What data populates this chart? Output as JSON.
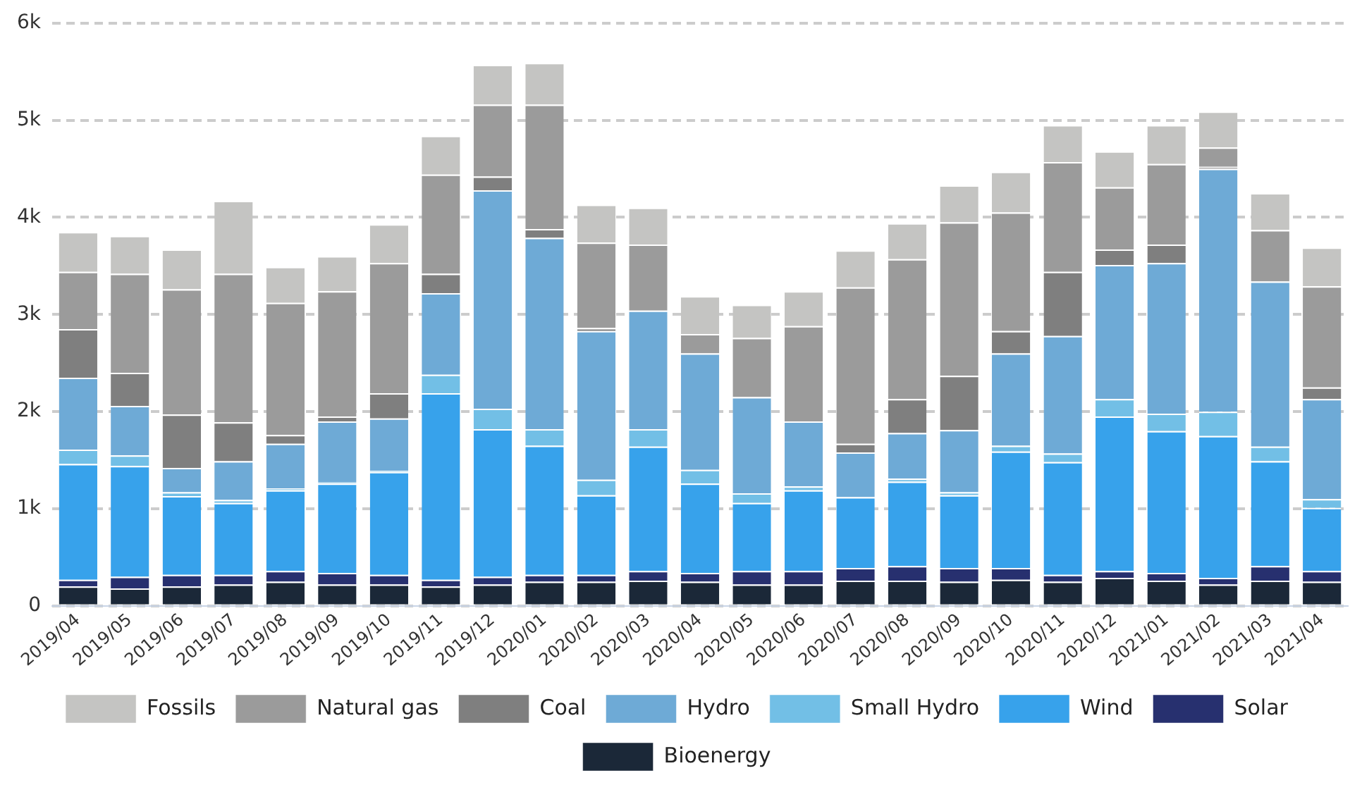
{
  "chart_data": {
    "type": "bar",
    "stacked": true,
    "categories": [
      "2019/04",
      "2019/05",
      "2019/06",
      "2019/07",
      "2019/08",
      "2019/09",
      "2019/10",
      "2019/11",
      "2019/12",
      "2020/01",
      "2020/02",
      "2020/03",
      "2020/04",
      "2020/05",
      "2020/06",
      "2020/07",
      "2020/08",
      "2020/09",
      "2020/10",
      "2020/11",
      "2020/12",
      "2021/01",
      "2021/02",
      "2021/03",
      "2021/04"
    ],
    "series": [
      {
        "name": "Bioenergy",
        "color": "#1b2838",
        "values": [
          200,
          180,
          200,
          220,
          250,
          220,
          220,
          200,
          220,
          250,
          250,
          260,
          250,
          220,
          220,
          260,
          260,
          250,
          270,
          250,
          290,
          260,
          220,
          260,
          250
        ]
      },
      {
        "name": "Solar",
        "color": "#27306f",
        "values": [
          70,
          120,
          120,
          100,
          110,
          120,
          100,
          70,
          80,
          70,
          70,
          100,
          90,
          140,
          140,
          130,
          150,
          140,
          120,
          70,
          70,
          80,
          70,
          150,
          110
        ]
      },
      {
        "name": "Wind",
        "color": "#37a2eb",
        "values": [
          1190,
          1140,
          810,
          740,
          830,
          920,
          1060,
          1920,
          1520,
          1330,
          820,
          1280,
          920,
          700,
          830,
          730,
          870,
          750,
          1200,
          1160,
          1590,
          1460,
          1460,
          1080,
          650
        ]
      },
      {
        "name": "Small Hydro",
        "color": "#72bfe6",
        "values": [
          150,
          110,
          40,
          30,
          20,
          10,
          10,
          190,
          210,
          170,
          160,
          180,
          140,
          100,
          40,
          null,
          30,
          30,
          60,
          90,
          180,
          180,
          250,
          150,
          90
        ]
      },
      {
        "name": "Hydro",
        "color": "#6eaad6",
        "values": [
          740,
          510,
          250,
          400,
          460,
          630,
          540,
          840,
          2250,
          1970,
          1530,
          1220,
          1200,
          990,
          670,
          460,
          470,
          640,
          950,
          1210,
          1380,
          1550,
          2500,
          1700,
          1030
        ]
      },
      {
        "name": "Coal",
        "color": "#7f7f7f",
        "values": [
          500,
          340,
          550,
          400,
          90,
          50,
          260,
          200,
          140,
          90,
          30,
          0,
          0,
          0,
          0,
          90,
          350,
          560,
          230,
          660,
          160,
          190,
          20,
          null,
          120
        ]
      },
      {
        "name": "Natural gas",
        "color": "#9b9b9b",
        "values": [
          590,
          1020,
          1290,
          1530,
          1360,
          1290,
          1340,
          1020,
          740,
          1280,
          880,
          680,
          200,
          610,
          980,
          1610,
          1440,
          1580,
          1220,
          1130,
          640,
          830,
          200,
          530,
          1040
        ]
      },
      {
        "name": "Fossils",
        "color": "#c4c4c2",
        "values": [
          410,
          390,
          410,
          750,
          370,
          360,
          400,
          400,
          410,
          430,
          390,
          380,
          390,
          340,
          360,
          380,
          370,
          380,
          420,
          380,
          370,
          400,
          370,
          380,
          400
        ]
      }
    ],
    "ylim": [
      0,
      6000
    ],
    "yticks": [
      0,
      {
        "value": 1000,
        "label": "1k"
      },
      {
        "value": 2000,
        "label": "2k"
      },
      {
        "value": 3000,
        "label": "3k"
      },
      {
        "value": 4000,
        "label": "4k"
      },
      {
        "value": 5000,
        "label": "5k"
      },
      {
        "value": 6000,
        "label": "6k"
      }
    ],
    "grid": "y",
    "legend": "bottom"
  }
}
